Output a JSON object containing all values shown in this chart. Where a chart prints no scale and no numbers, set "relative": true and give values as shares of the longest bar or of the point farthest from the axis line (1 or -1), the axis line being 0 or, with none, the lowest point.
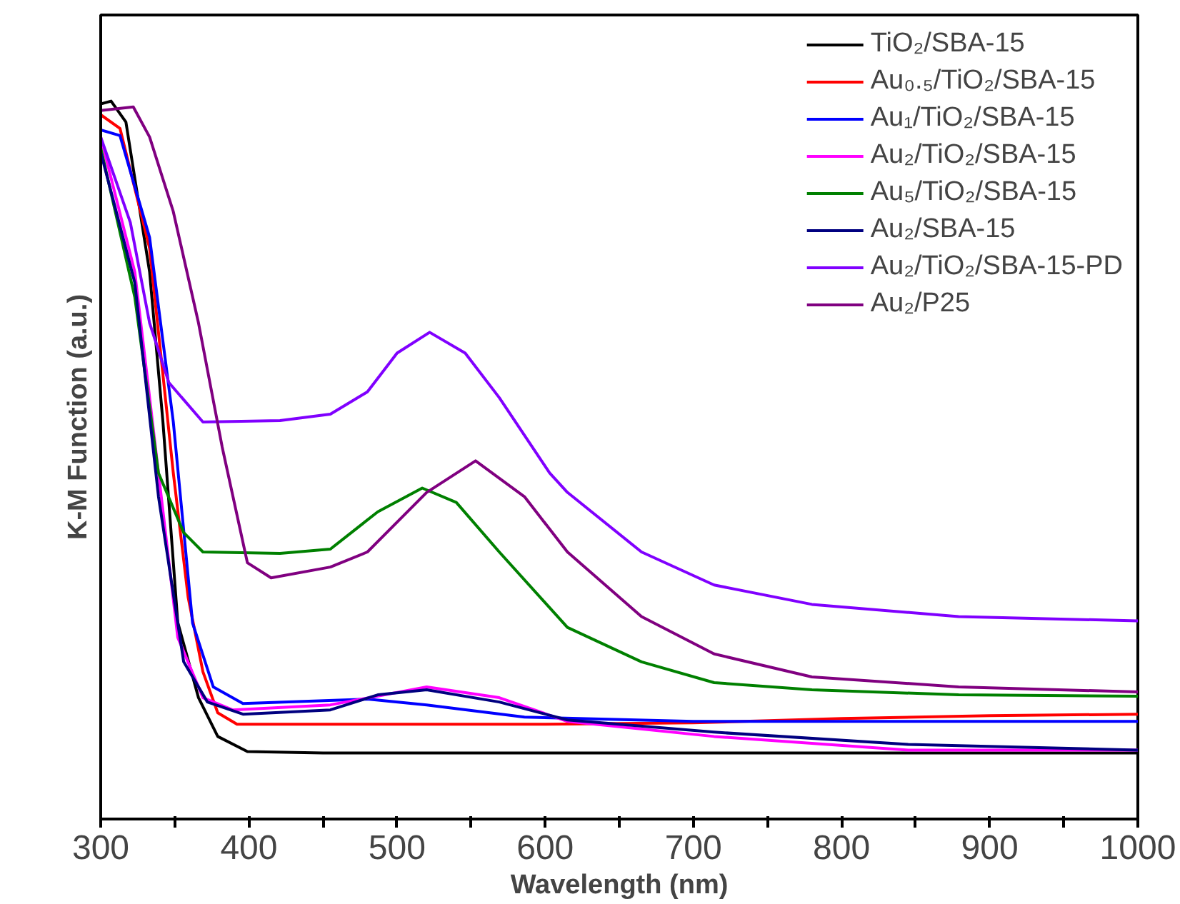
{
  "chart_data": {
    "type": "line",
    "relative": true,
    "xlabel": "Wavelength (nm)",
    "ylabel": "K-M Function (a.u.)",
    "xlim": [
      300,
      1000
    ],
    "xticks": [
      300,
      {
        "value": 350,
        "label": null
      },
      400,
      {
        "value": 450,
        "label": null
      },
      500,
      {
        "value": 550,
        "label": null
      },
      600,
      {
        "value": 650,
        "label": null
      },
      700,
      {
        "value": 750,
        "label": null
      },
      800,
      {
        "value": 850,
        "label": null
      },
      900,
      {
        "value": 950,
        "label": null
      },
      1000
    ],
    "legend": "top right",
    "grid": false,
    "marker": "none",
    "line_style": "solid",
    "series": [
      {
        "name": "TiO₂/SBA-15",
        "color": "#000000",
        "x": [
          300,
          307,
          317,
          333,
          342,
          352,
          366,
          379,
          399,
          450,
          600,
          800,
          1000
        ],
        "values": [
          0.996,
          1.0,
          0.971,
          0.762,
          0.553,
          0.274,
          0.169,
          0.115,
          0.094,
          0.092,
          0.092,
          0.092,
          0.092
        ]
      },
      {
        "name": "Au₀.₅/TiO₂/SBA-15",
        "color": "#ff0000",
        "x": [
          300,
          313,
          333,
          349,
          359,
          369,
          379,
          392,
          600,
          700,
          800,
          900,
          1000
        ],
        "values": [
          0.981,
          0.962,
          0.795,
          0.482,
          0.309,
          0.205,
          0.148,
          0.132,
          0.132,
          0.134,
          0.14,
          0.144,
          0.146
        ]
      },
      {
        "name": "Au₁/TiO₂/SBA-15",
        "color": "#0000ff",
        "x": [
          300,
          313,
          333,
          349,
          362,
          376,
          396,
          480,
          520,
          586,
          700,
          850,
          1000
        ],
        "values": [
          0.96,
          0.952,
          0.81,
          0.553,
          0.273,
          0.184,
          0.161,
          0.167,
          0.159,
          0.142,
          0.136,
          0.136,
          0.136
        ]
      },
      {
        "name": "Au₂/TiO₂/SBA-15",
        "color": "#ff00ff",
        "x": [
          300,
          323,
          339,
          352,
          369,
          389,
          455,
          520,
          569,
          615,
          714,
          845,
          1000
        ],
        "values": [
          0.95,
          0.762,
          0.482,
          0.253,
          0.169,
          0.152,
          0.159,
          0.184,
          0.169,
          0.136,
          0.115,
          0.096,
          0.096
        ]
      },
      {
        "name": "Au₅/TiO₂/SBA-15",
        "color": "#008000",
        "x": [
          300,
          323,
          339,
          356,
          369,
          421,
          455,
          487,
          517,
          540,
          569,
          615,
          665,
          714,
          780,
          879,
          1000
        ],
        "values": [
          0.935,
          0.727,
          0.482,
          0.399,
          0.372,
          0.37,
          0.376,
          0.428,
          0.461,
          0.441,
          0.372,
          0.267,
          0.219,
          0.19,
          0.18,
          0.173,
          0.171
        ]
      },
      {
        "name": "Au₂/SBA-15",
        "color": "#000080",
        "x": [
          300,
          323,
          339,
          356,
          372,
          396,
          455,
          487,
          520,
          569,
          615,
          714,
          845,
          1000
        ],
        "values": [
          0.929,
          0.747,
          0.449,
          0.219,
          0.163,
          0.146,
          0.152,
          0.173,
          0.18,
          0.163,
          0.138,
          0.121,
          0.104,
          0.096
        ]
      },
      {
        "name": "Au₂/TiO₂/SBA-15-PD",
        "color": "#8000ff",
        "x": [
          300,
          320,
          333,
          346,
          369,
          421,
          455,
          480,
          500,
          522,
          546,
          569,
          603,
          615,
          665,
          714,
          780,
          879,
          1000
        ],
        "values": [
          0.95,
          0.831,
          0.691,
          0.608,
          0.553,
          0.555,
          0.564,
          0.595,
          0.649,
          0.678,
          0.649,
          0.587,
          0.482,
          0.455,
          0.372,
          0.326,
          0.299,
          0.282,
          0.276
        ]
      },
      {
        "name": "Au₂/P25",
        "color": "#800080",
        "x": [
          300,
          322,
          333,
          349,
          366,
          382,
          399,
          415,
          455,
          480,
          520,
          553,
          586,
          615,
          665,
          714,
          780,
          879,
          1000
        ],
        "values": [
          0.987,
          0.992,
          0.95,
          0.846,
          0.691,
          0.518,
          0.357,
          0.336,
          0.351,
          0.372,
          0.455,
          0.499,
          0.449,
          0.372,
          0.282,
          0.23,
          0.198,
          0.184,
          0.177
        ]
      }
    ]
  }
}
